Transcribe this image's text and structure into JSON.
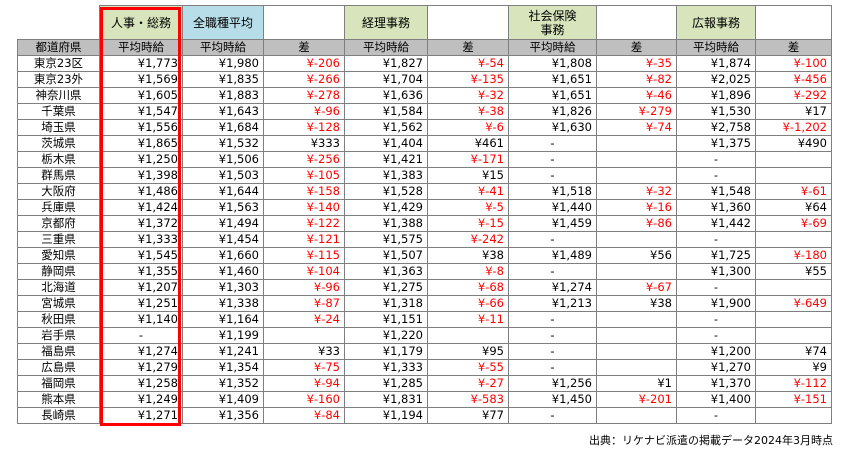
{
  "header": {
    "groups": [
      "人事・総務",
      "全職種平均",
      "経理事務",
      "社会保険事務",
      "広報事務"
    ],
    "pref_col": "都道府県",
    "avg_col": "平均時給",
    "diff_col": "差"
  },
  "rows": [
    {
      "pref": "東京23区",
      "hr": "¥1,773",
      "all": "¥1,980",
      "d1": "¥-206",
      "acc": "¥1,827",
      "d2": "¥-54",
      "soc": "¥1,808",
      "d3": "¥-35",
      "pr": "¥1,874",
      "d4": "¥-100"
    },
    {
      "pref": "東京23外",
      "hr": "¥1,569",
      "all": "¥1,835",
      "d1": "¥-266",
      "acc": "¥1,704",
      "d2": "¥-135",
      "soc": "¥1,651",
      "d3": "¥-82",
      "pr": "¥2,025",
      "d4": "¥-456"
    },
    {
      "pref": "神奈川県",
      "hr": "¥1,605",
      "all": "¥1,883",
      "d1": "¥-278",
      "acc": "¥1,636",
      "d2": "¥-32",
      "soc": "¥1,651",
      "d3": "¥-46",
      "pr": "¥1,896",
      "d4": "¥-292"
    },
    {
      "pref": "千葉県",
      "hr": "¥1,547",
      "all": "¥1,643",
      "d1": "¥-96",
      "acc": "¥1,584",
      "d2": "¥-38",
      "soc": "¥1,826",
      "d3": "¥-279",
      "pr": "¥1,530",
      "d4": "¥17"
    },
    {
      "pref": "埼玉県",
      "hr": "¥1,556",
      "all": "¥1,684",
      "d1": "¥-128",
      "acc": "¥1,562",
      "d2": "¥-6",
      "soc": "¥1,630",
      "d3": "¥-74",
      "pr": "¥2,758",
      "d4": "¥-1,202"
    },
    {
      "pref": "茨城県",
      "hr": "¥1,865",
      "all": "¥1,532",
      "d1": "¥333",
      "acc": "¥1,404",
      "d2": "¥461",
      "soc": "-",
      "d3": "",
      "pr": "¥1,375",
      "d4": "¥490"
    },
    {
      "pref": "栃木県",
      "hr": "¥1,250",
      "all": "¥1,506",
      "d1": "¥-256",
      "acc": "¥1,421",
      "d2": "¥-171",
      "soc": "-",
      "d3": "",
      "pr": "-",
      "d4": ""
    },
    {
      "pref": "群馬県",
      "hr": "¥1,398",
      "all": "¥1,503",
      "d1": "¥-105",
      "acc": "¥1,383",
      "d2": "¥15",
      "soc": "-",
      "d3": "",
      "pr": "-",
      "d4": ""
    },
    {
      "pref": "大阪府",
      "hr": "¥1,486",
      "all": "¥1,644",
      "d1": "¥-158",
      "acc": "¥1,528",
      "d2": "¥-41",
      "soc": "¥1,518",
      "d3": "¥-32",
      "pr": "¥1,548",
      "d4": "¥-61"
    },
    {
      "pref": "兵庫県",
      "hr": "¥1,424",
      "all": "¥1,563",
      "d1": "¥-140",
      "acc": "¥1,429",
      "d2": "¥-5",
      "soc": "¥1,440",
      "d3": "¥-16",
      "pr": "¥1,360",
      "d4": "¥64"
    },
    {
      "pref": "京都府",
      "hr": "¥1,372",
      "all": "¥1,494",
      "d1": "¥-122",
      "acc": "¥1,388",
      "d2": "¥-15",
      "soc": "¥1,459",
      "d3": "¥-86",
      "pr": "¥1,442",
      "d4": "¥-69"
    },
    {
      "pref": "三重県",
      "hr": "¥1,333",
      "all": "¥1,454",
      "d1": "¥-121",
      "acc": "¥1,575",
      "d2": "¥-242",
      "soc": "-",
      "d3": "",
      "pr": "-",
      "d4": ""
    },
    {
      "pref": "愛知県",
      "hr": "¥1,545",
      "all": "¥1,660",
      "d1": "¥-115",
      "acc": "¥1,507",
      "d2": "¥38",
      "soc": "¥1,489",
      "d3": "¥56",
      "pr": "¥1,725",
      "d4": "¥-180"
    },
    {
      "pref": "静岡県",
      "hr": "¥1,355",
      "all": "¥1,460",
      "d1": "¥-104",
      "acc": "¥1,363",
      "d2": "¥-8",
      "soc": "-",
      "d3": "",
      "pr": "¥1,300",
      "d4": "¥55"
    },
    {
      "pref": "北海道",
      "hr": "¥1,207",
      "all": "¥1,303",
      "d1": "¥-96",
      "acc": "¥1,275",
      "d2": "¥-68",
      "soc": "¥1,274",
      "d3": "¥-67",
      "pr": "-",
      "d4": ""
    },
    {
      "pref": "宮城県",
      "hr": "¥1,251",
      "all": "¥1,338",
      "d1": "¥-87",
      "acc": "¥1,318",
      "d2": "¥-66",
      "soc": "¥1,213",
      "d3": "¥38",
      "pr": "¥1,900",
      "d4": "¥-649"
    },
    {
      "pref": "秋田県",
      "hr": "¥1,140",
      "all": "¥1,164",
      "d1": "¥-24",
      "acc": "¥1,151",
      "d2": "¥-11",
      "soc": "-",
      "d3": "",
      "pr": "-",
      "d4": ""
    },
    {
      "pref": "岩手県",
      "hr": "-",
      "all": "¥1,199",
      "d1": "",
      "acc": "¥1,220",
      "d2": "",
      "soc": "-",
      "d3": "",
      "pr": "-",
      "d4": ""
    },
    {
      "pref": "福島県",
      "hr": "¥1,274",
      "all": "¥1,241",
      "d1": "¥33",
      "acc": "¥1,179",
      "d2": "¥95",
      "soc": "-",
      "d3": "",
      "pr": "¥1,200",
      "d4": "¥74"
    },
    {
      "pref": "広島県",
      "hr": "¥1,279",
      "all": "¥1,354",
      "d1": "¥-75",
      "acc": "¥1,333",
      "d2": "¥-55",
      "soc": "-",
      "d3": "",
      "pr": "¥1,270",
      "d4": "¥9"
    },
    {
      "pref": "福岡県",
      "hr": "¥1,258",
      "all": "¥1,352",
      "d1": "¥-94",
      "acc": "¥1,285",
      "d2": "¥-27",
      "soc": "¥1,256",
      "d3": "¥1",
      "pr": "¥1,370",
      "d4": "¥-112"
    },
    {
      "pref": "熊本県",
      "hr": "¥1,249",
      "all": "¥1,409",
      "d1": "¥-160",
      "acc": "¥1,831",
      "d2": "¥-583",
      "soc": "¥1,450",
      "d3": "¥-201",
      "pr": "¥1,400",
      "d4": "¥-151"
    },
    {
      "pref": "長崎県",
      "hr": "¥1,271",
      "all": "¥1,356",
      "d1": "¥-84",
      "acc": "¥1,194",
      "d2": "¥77",
      "soc": "-",
      "d3": "",
      "pr": "-",
      "d4": ""
    }
  ],
  "source": "出典：リケナビ派遣の掲載データ2024年3月時点",
  "colors": {
    "negative": "#ff0000",
    "green_header": "#d8e4bc",
    "blue_header": "#b7dee8",
    "gray_header": "#bfbfbf",
    "highlight": "#ff0000"
  }
}
